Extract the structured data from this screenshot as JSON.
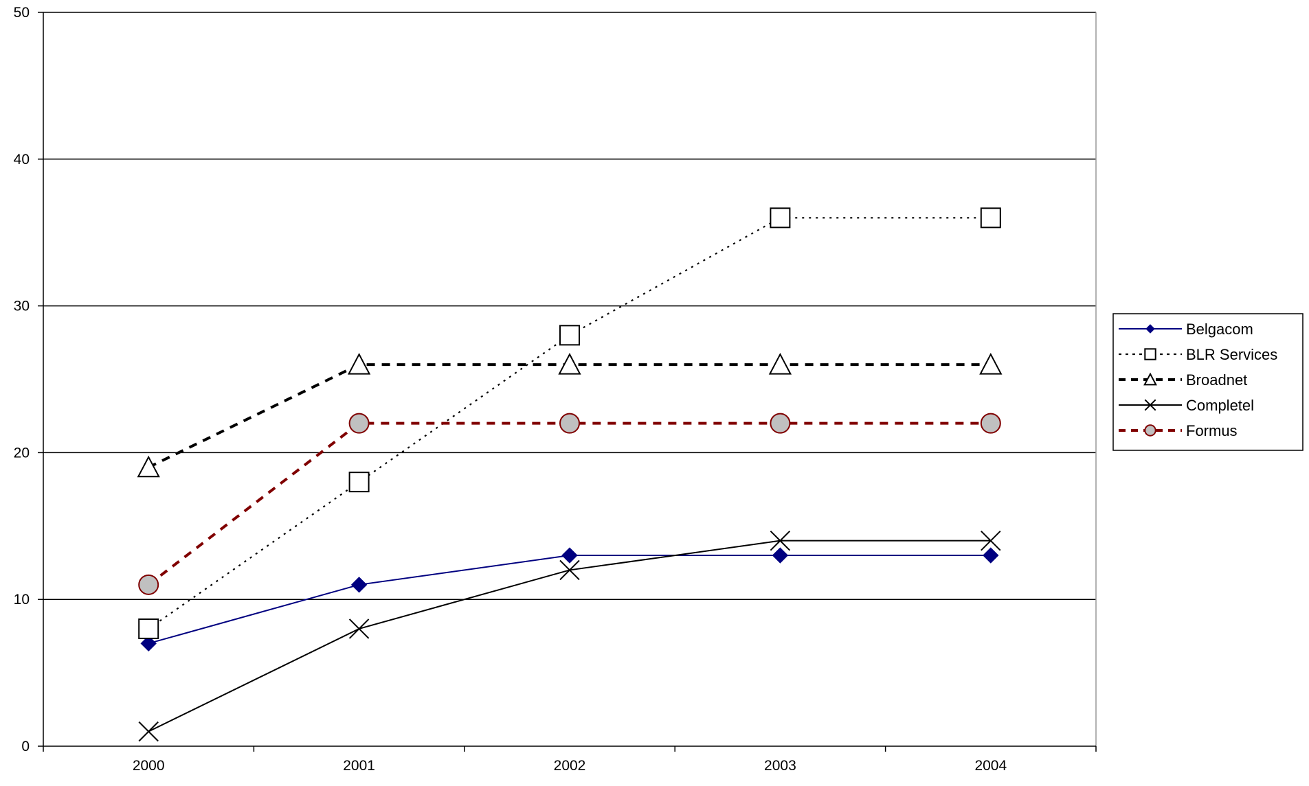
{
  "chart_data": {
    "type": "line",
    "title": "",
    "xlabel": "",
    "ylabel": "",
    "x": [
      "2000",
      "2001",
      "2002",
      "2003",
      "2004"
    ],
    "ylim": [
      0,
      50
    ],
    "yticks": [
      0,
      10,
      20,
      30,
      40,
      50
    ],
    "grid": "horizontal",
    "legend_position": "right",
    "series": [
      {
        "name": "Belgacom",
        "values": [
          7,
          11,
          13,
          13,
          13
        ],
        "color": "#000080",
        "marker": "diamond",
        "line_style": "solid"
      },
      {
        "name": "BLR Services",
        "values": [
          8,
          18,
          28,
          36,
          36
        ],
        "color": "#000000",
        "marker": "square",
        "line_style": "dotted"
      },
      {
        "name": "Broadnet",
        "values": [
          19,
          26,
          26,
          26,
          26
        ],
        "color": "#000000",
        "marker": "triangle",
        "line_style": "dashed"
      },
      {
        "name": "Completel",
        "values": [
          1,
          8,
          12,
          14,
          14
        ],
        "color": "#000000",
        "marker": "x",
        "line_style": "solid"
      },
      {
        "name": "Formus",
        "values": [
          11,
          22,
          22,
          22,
          22
        ],
        "color": "#800000",
        "marker": "circle",
        "line_style": "dashed"
      }
    ]
  }
}
